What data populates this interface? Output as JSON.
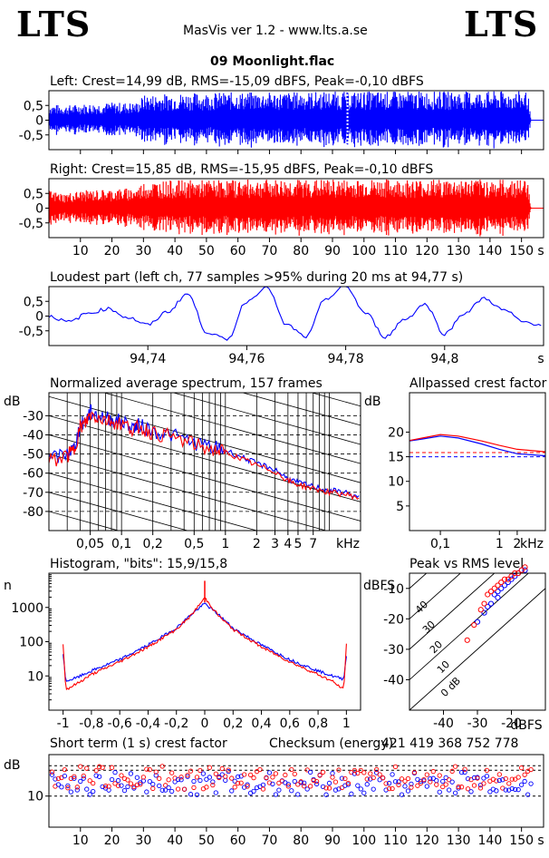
{
  "header": {
    "logo_left": "LTS",
    "logo_right": "LTS",
    "app_title": "MasVis ver 1.2 - www.lts.a.se",
    "file_title": "09 Moonlight.flac"
  },
  "colors": {
    "left": "#0000ff",
    "right": "#ff0000",
    "peak": "#ff0000"
  },
  "chart_data": [
    {
      "id": "wave_left",
      "type": "line",
      "title": "Left: Crest=14,99 dB, RMS=-15,09 dBFS, Peak=-0,10 dBFS",
      "ylim": [
        -1,
        1
      ],
      "xlim": [
        0,
        157
      ],
      "y_ticks": [
        0.5,
        0,
        -0.5
      ],
      "y_tick_labels": [
        "0,5",
        "0",
        "-0,5"
      ],
      "x_ticks": [
        10,
        20,
        30,
        40,
        50,
        60,
        70,
        80,
        90,
        100,
        110,
        120,
        130,
        140,
        150
      ],
      "x_tick_labels": [],
      "envelope": [
        [
          0,
          0.55
        ],
        [
          5,
          0.5
        ],
        [
          10,
          0.55
        ],
        [
          20,
          0.6
        ],
        [
          28,
          0.6
        ],
        [
          30,
          0.85
        ],
        [
          40,
          0.92
        ],
        [
          60,
          0.95
        ],
        [
          75,
          0.95
        ],
        [
          80,
          0.97
        ],
        [
          100,
          0.98
        ],
        [
          120,
          0.98
        ],
        [
          140,
          0.98
        ],
        [
          152,
          0.98
        ],
        [
          153,
          0
        ]
      ],
      "peak_marker_s": 94.77
    },
    {
      "id": "wave_right",
      "type": "line",
      "title": "Right: Crest=15,85 dB, RMS=-15,95 dBFS, Peak=-0,10 dBFS",
      "ylim": [
        -1,
        1
      ],
      "xlim": [
        0,
        157
      ],
      "y_ticks": [
        0.5,
        0,
        -0.5
      ],
      "y_tick_labels": [
        "0,5",
        "0",
        "-0,5"
      ],
      "x_ticks": [
        10,
        20,
        30,
        40,
        50,
        60,
        70,
        80,
        90,
        100,
        110,
        120,
        130,
        140,
        150
      ],
      "x_tick_labels": [
        "10",
        "20",
        "30",
        "40",
        "50",
        "60",
        "70",
        "80",
        "90",
        "100",
        "110",
        "120",
        "130",
        "140",
        "150"
      ],
      "x_unit": "s",
      "envelope": [
        [
          0,
          0.6
        ],
        [
          5,
          0.5
        ],
        [
          10,
          0.6
        ],
        [
          20,
          0.65
        ],
        [
          28,
          0.7
        ],
        [
          30,
          0.9
        ],
        [
          40,
          0.95
        ],
        [
          60,
          0.97
        ],
        [
          80,
          0.98
        ],
        [
          100,
          0.98
        ],
        [
          120,
          0.98
        ],
        [
          140,
          0.98
        ],
        [
          152,
          0.98
        ],
        [
          153,
          0
        ]
      ]
    },
    {
      "id": "loudest",
      "type": "line",
      "title": "Loudest part (left  ch, 77 samples >95% during 20 ms at 94,77 s)",
      "xlim": [
        94.72,
        94.82
      ],
      "ylim": [
        -1,
        1
      ],
      "y_ticks": [
        0.5,
        0,
        -0.5
      ],
      "y_tick_labels": [
        "0,5",
        "0",
        "-0,5"
      ],
      "x_ticks": [
        94.74,
        94.76,
        94.78,
        94.8
      ],
      "x_tick_labels": [
        "94,74",
        "94,76",
        "94,78",
        "94,8"
      ],
      "x_unit": "s",
      "x": [
        94.72,
        94.724,
        94.728,
        94.732,
        94.736,
        94.74,
        94.744,
        94.748,
        94.752,
        94.756,
        94.76,
        94.764,
        94.768,
        94.772,
        94.776,
        94.78,
        94.784,
        94.788,
        94.792,
        94.796,
        94.8,
        94.804,
        94.808,
        94.812,
        94.816,
        94.82
      ],
      "y": [
        0.0,
        -0.2,
        0.1,
        0.25,
        -0.05,
        -0.3,
        0.15,
        0.75,
        -0.55,
        -0.8,
        0.5,
        1.0,
        -0.3,
        -0.7,
        0.6,
        1.0,
        0.1,
        -0.7,
        -0.1,
        0.4,
        -0.6,
        0.1,
        0.6,
        0.2,
        -0.2,
        -0.3
      ]
    },
    {
      "id": "spectrum",
      "type": "line",
      "title": "Normalized average spectrum, 157 frames",
      "y_unit": "dB",
      "x_unit": "kHz",
      "x_scale": "log",
      "xlim": [
        0.02,
        20
      ],
      "ylim": [
        -90,
        -18
      ],
      "y_ticks": [
        -30,
        -40,
        -50,
        -60,
        -70,
        -80
      ],
      "y_tick_labels": [
        "-30",
        "-40",
        "-50",
        "-60",
        "-70",
        "-80"
      ],
      "x_ticks": [
        0.05,
        0.1,
        0.2,
        0.5,
        1,
        2,
        3,
        4,
        5,
        7
      ],
      "x_tick_labels": [
        "0,05",
        "0,1",
        "0,2",
        "0,5",
        "1",
        "2",
        "3",
        "4",
        "5",
        "7"
      ],
      "series": [
        {
          "x": [
            0.02,
            0.03,
            0.035,
            0.04,
            0.045,
            0.05,
            0.06,
            0.08,
            0.1,
            0.13,
            0.15,
            0.2,
            0.3,
            0.5,
            0.8,
            1,
            1.5,
            2,
            3,
            4,
            5,
            7,
            10,
            14,
            20
          ],
          "y": [
            -53,
            -50,
            -47,
            -35,
            -33,
            -28,
            -30,
            -32,
            -33,
            -36,
            -35,
            -38,
            -40,
            -44,
            -47,
            -48,
            -52,
            -55,
            -58,
            -63,
            -65,
            -67,
            -69,
            -70,
            -73
          ]
        },
        {
          "x": [
            0.02,
            0.03,
            0.035,
            0.04,
            0.045,
            0.05,
            0.06,
            0.08,
            0.1,
            0.13,
            0.15,
            0.2,
            0.3,
            0.5,
            0.8,
            1,
            1.5,
            2,
            3,
            4,
            5,
            7,
            10,
            14,
            20
          ],
          "y": [
            -54,
            -51,
            -48,
            -36,
            -34,
            -29,
            -31,
            -33,
            -34,
            -37,
            -36,
            -39,
            -41,
            -45,
            -48,
            -49,
            -53,
            -56,
            -59,
            -64,
            -66,
            -68,
            -70,
            -71,
            -73
          ]
        }
      ]
    },
    {
      "id": "allpassed",
      "type": "line",
      "title": "Allpassed crest factor",
      "y_unit": "dB",
      "x_unit": "kHz",
      "x_scale": "log",
      "xlim": [
        0.03,
        6
      ],
      "ylim": [
        0,
        28
      ],
      "y_ticks": [
        20,
        15,
        10,
        5
      ],
      "y_tick_labels": [
        "20",
        "15",
        "10",
        "5"
      ],
      "x_ticks": [
        0.1,
        1,
        2
      ],
      "x_tick_labels": [
        "0,1",
        "1",
        "2"
      ],
      "ref_lines": [
        15.85,
        14.99
      ],
      "series": [
        {
          "x": [
            0.03,
            0.05,
            0.1,
            0.2,
            0.5,
            1,
            2,
            6
          ],
          "y": [
            18.2,
            18.6,
            19.2,
            18.8,
            17.6,
            16.5,
            15.6,
            15.2
          ]
        },
        {
          "x": [
            0.03,
            0.05,
            0.1,
            0.2,
            0.5,
            1,
            2,
            6
          ],
          "y": [
            18.3,
            18.8,
            19.5,
            19.2,
            18.2,
            17.3,
            16.5,
            16.0
          ]
        }
      ]
    },
    {
      "id": "histogram",
      "type": "line",
      "title": "Histogram, \"bits\": 15,9/15,8",
      "y_unit": "n",
      "y_scale": "log",
      "xlim": [
        -1.1,
        1.1
      ],
      "ylim": [
        1,
        10000
      ],
      "y_ticks": [
        1000,
        100,
        10
      ],
      "y_tick_labels": [
        "1000",
        "100",
        "10"
      ],
      "x_ticks": [
        -1,
        -0.8,
        -0.6,
        -0.4,
        -0.2,
        0,
        0.2,
        0.4,
        0.6,
        0.8,
        1
      ],
      "x_tick_labels": [
        "-1",
        "-0,8",
        "-0,6",
        "-0,4",
        "-0,2",
        "0",
        "0,2",
        "0,4",
        "0,6",
        "0,8",
        "1"
      ],
      "series": [
        {
          "x": [
            -1,
            -0.98,
            -0.9,
            -0.8,
            -0.6,
            -0.4,
            -0.2,
            -0.1,
            0,
            0.1,
            0.2,
            0.4,
            0.6,
            0.8,
            0.9,
            0.98,
            1
          ],
          "y": [
            40,
            7,
            9,
            14,
            30,
            80,
            250,
            600,
            1300,
            600,
            250,
            80,
            30,
            14,
            10,
            8,
            40
          ]
        },
        {
          "x": [
            -1,
            -0.98,
            -0.9,
            -0.8,
            -0.6,
            -0.4,
            -0.2,
            -0.1,
            0,
            0.1,
            0.2,
            0.4,
            0.6,
            0.8,
            0.9,
            0.98,
            1
          ],
          "y": [
            80,
            4,
            6,
            11,
            26,
            70,
            230,
            560,
            1900,
            560,
            230,
            70,
            26,
            11,
            7,
            4,
            80
          ]
        }
      ]
    },
    {
      "id": "peak_rms",
      "type": "scatter",
      "title": "Peak vs RMS level",
      "y_unit": "dBFS",
      "x_unit": "dBFS",
      "xlim": [
        -50,
        -10
      ],
      "ylim": [
        -50,
        -5
      ],
      "y_ticks": [
        -10,
        -20,
        -30,
        -40
      ],
      "y_tick_labels": [
        "-10",
        "-20",
        "-30",
        "-40"
      ],
      "x_ticks": [
        -40,
        -30,
        -20
      ],
      "x_tick_labels": [
        "-40",
        "-30",
        "-20"
      ],
      "diag_labels": [
        "40",
        "30",
        "20",
        "10",
        "0 dB"
      ],
      "series": [
        {
          "x": [
            -30,
            -28,
            -27,
            -26,
            -25,
            -24,
            -24,
            -23,
            -22,
            -21,
            -20,
            -19,
            -18,
            -17,
            -16
          ],
          "y": [
            -21,
            -18,
            -16,
            -15,
            -12,
            -11,
            -13,
            -10,
            -9,
            -8,
            -7,
            -6,
            -5,
            -4,
            -4
          ]
        },
        {
          "x": [
            -33,
            -31,
            -29,
            -28,
            -27,
            -26,
            -25,
            -24,
            -23,
            -22,
            -21,
            -20,
            -19,
            -18,
            -17,
            -16
          ],
          "y": [
            -27,
            -22,
            -17,
            -15,
            -12,
            -11,
            -10,
            -9,
            -8,
            -7,
            -7,
            -6,
            -5,
            -5,
            -4,
            -3
          ]
        }
      ]
    },
    {
      "id": "short_term_crest",
      "type": "scatter",
      "title": "Short term (1 s) crest factor",
      "y_unit": "dB",
      "x_unit": "s",
      "xlim": [
        0,
        157
      ],
      "ylim": [
        4,
        18
      ],
      "y_ticks": [
        10
      ],
      "y_tick_labels": [
        "10"
      ],
      "ref_lines": [
        14.99,
        15.85
      ],
      "x_ticks": [
        10,
        20,
        30,
        40,
        50,
        60,
        70,
        80,
        90,
        100,
        110,
        120,
        130,
        140,
        150
      ],
      "x_tick_labels": [
        "10",
        "20",
        "30",
        "40",
        "50",
        "60",
        "70",
        "80",
        "90",
        "100",
        "110",
        "120",
        "130",
        "140",
        "150"
      ],
      "checksum_label": "Checksum (energy):",
      "checksum_value": "421 419 368 752 778"
    }
  ]
}
